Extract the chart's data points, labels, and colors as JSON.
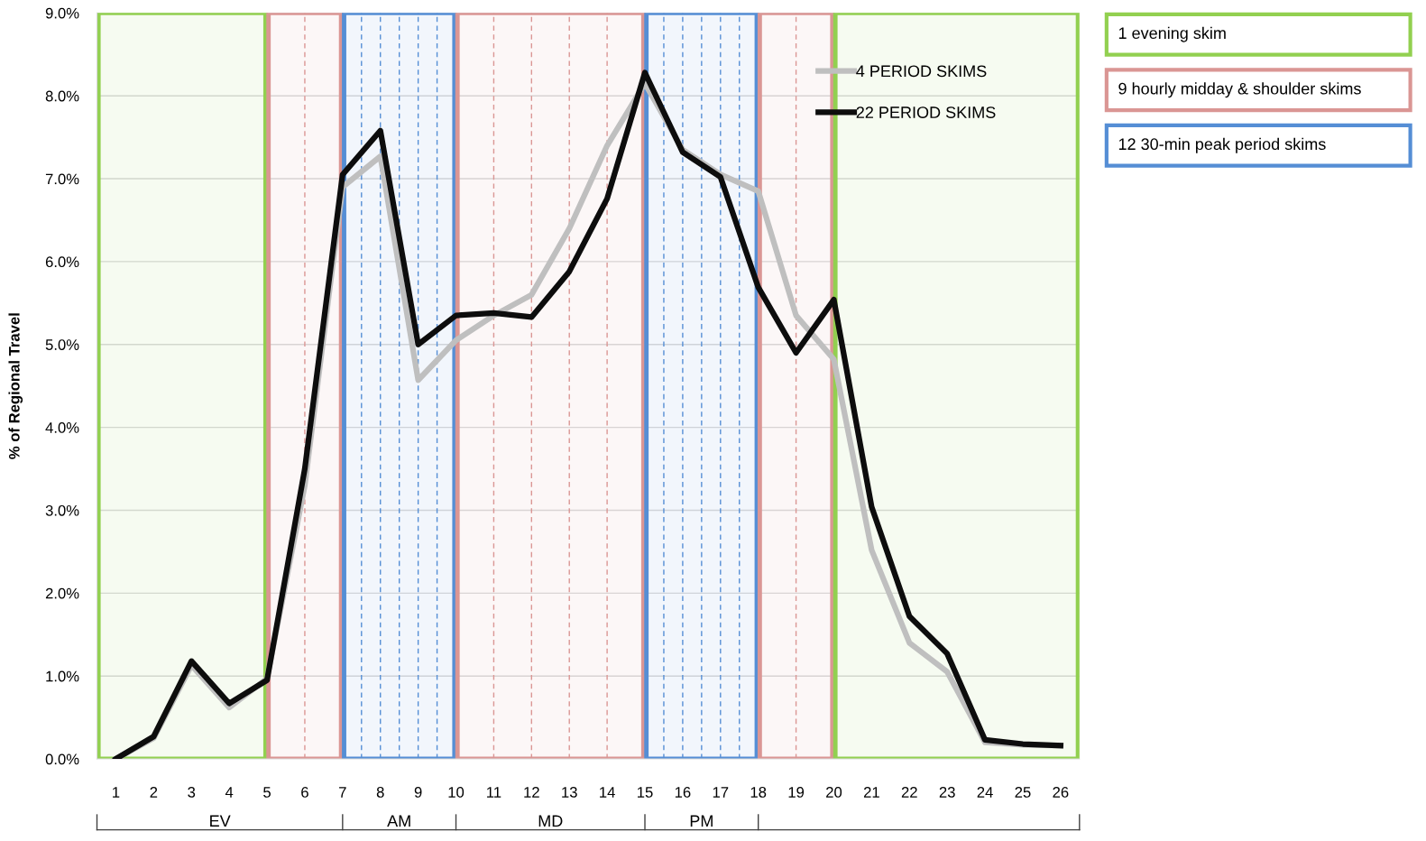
{
  "chart_data": {
    "type": "line",
    "ylabel": "% of Regional Travel",
    "x": [
      1,
      2,
      3,
      4,
      5,
      6,
      7,
      8,
      9,
      10,
      11,
      12,
      13,
      14,
      15,
      16,
      17,
      18,
      19,
      20,
      21,
      22,
      23,
      24,
      25,
      26
    ],
    "xlim": [
      0.5,
      26.5
    ],
    "xticks": [
      1,
      2,
      3,
      4,
      5,
      6,
      7,
      8,
      9,
      10,
      11,
      12,
      13,
      14,
      15,
      16,
      17,
      18,
      19,
      20,
      21,
      22,
      23,
      24,
      25,
      26
    ],
    "ylim": [
      0,
      9
    ],
    "yticks": [
      {
        "value": 0,
        "label": "0.0%"
      },
      {
        "value": 1,
        "label": "1.0%"
      },
      {
        "value": 2,
        "label": "2.0%"
      },
      {
        "value": 3,
        "label": "3.0%"
      },
      {
        "value": 4,
        "label": "4.0%"
      },
      {
        "value": 5,
        "label": "5.0%"
      },
      {
        "value": 6,
        "label": "6.0%"
      },
      {
        "value": 7,
        "label": "7.0%"
      },
      {
        "value": 8,
        "label": "8.0%"
      },
      {
        "value": 9,
        "label": "9.0%"
      }
    ],
    "annotations": [
      "EV",
      "AM",
      "MD",
      "PM",
      "1 evening skim",
      "9 hourly midday & shoulder skims",
      "12 30-min peak period skims"
    ],
    "series": [
      {
        "name": "4 PERIOD SKIMS",
        "color": "#bfbfbf",
        "values": [
          0,
          0.25,
          1.13,
          0.62,
          0.97,
          3.3,
          6.9,
          7.27,
          4.57,
          5.05,
          5.35,
          5.6,
          6.4,
          7.4,
          8.15,
          7.35,
          7.05,
          6.85,
          5.35,
          4.82,
          2.52,
          1.4,
          1.05,
          0.2,
          0.17,
          0.16
        ]
      },
      {
        "name": "22 PERIOD SKIMS",
        "color": "#0d0d0d",
        "values": [
          0,
          0.27,
          1.18,
          0.67,
          0.95,
          3.5,
          7.05,
          7.58,
          5.0,
          5.35,
          5.38,
          5.33,
          5.88,
          6.76,
          8.28,
          7.32,
          7.02,
          5.69,
          4.9,
          5.54,
          3.04,
          1.72,
          1.27,
          0.23,
          0.18,
          0.16
        ]
      }
    ],
    "bands": [
      {
        "axis": "x",
        "from": 0.5,
        "to": 5,
        "color": "#92d050"
      },
      {
        "axis": "x",
        "from": 5,
        "to": 7,
        "color": "#da9694"
      },
      {
        "axis": "x",
        "from": 7,
        "to": 10,
        "color": "#558ed5"
      },
      {
        "axis": "x",
        "from": 10,
        "to": 15,
        "color": "#da9694"
      },
      {
        "axis": "x",
        "from": 15,
        "to": 18,
        "color": "#558ed5"
      },
      {
        "axis": "x",
        "from": 18,
        "to": 20,
        "color": "#da9694"
      },
      {
        "axis": "x",
        "from": 20,
        "to": 26.5,
        "color": "#92d050"
      }
    ],
    "ref_lines": [
      {
        "axis": "x",
        "value": 6,
        "color": "#da9694",
        "line_style": "dashed"
      },
      {
        "axis": "x",
        "value": 7.5,
        "color": "#558ed5",
        "line_style": "dashed"
      },
      {
        "axis": "x",
        "value": 8,
        "color": "#558ed5",
        "line_style": "dashed"
      },
      {
        "axis": "x",
        "value": 8.5,
        "color": "#558ed5",
        "line_style": "dashed"
      },
      {
        "axis": "x",
        "value": 9,
        "color": "#558ed5",
        "line_style": "dashed"
      },
      {
        "axis": "x",
        "value": 9.5,
        "color": "#558ed5",
        "line_style": "dashed"
      },
      {
        "axis": "x",
        "value": 11,
        "color": "#da9694",
        "line_style": "dashed"
      },
      {
        "axis": "x",
        "value": 12,
        "color": "#da9694",
        "line_style": "dashed"
      },
      {
        "axis": "x",
        "value": 13,
        "color": "#da9694",
        "line_style": "dashed"
      },
      {
        "axis": "x",
        "value": 14,
        "color": "#da9694",
        "line_style": "dashed"
      },
      {
        "axis": "x",
        "value": 15.5,
        "color": "#558ed5",
        "line_style": "dashed"
      },
      {
        "axis": "x",
        "value": 16,
        "color": "#558ed5",
        "line_style": "dashed"
      },
      {
        "axis": "x",
        "value": 16.5,
        "color": "#558ed5",
        "line_style": "dashed"
      },
      {
        "axis": "x",
        "value": 17,
        "color": "#558ed5",
        "line_style": "dashed"
      },
      {
        "axis": "x",
        "value": 17.5,
        "color": "#558ed5",
        "line_style": "dashed"
      },
      {
        "axis": "x",
        "value": 19,
        "color": "#da9694",
        "line_style": "dashed"
      }
    ],
    "grid": "y",
    "legend": "top right",
    "marker": "none",
    "line_style": "solid"
  }
}
